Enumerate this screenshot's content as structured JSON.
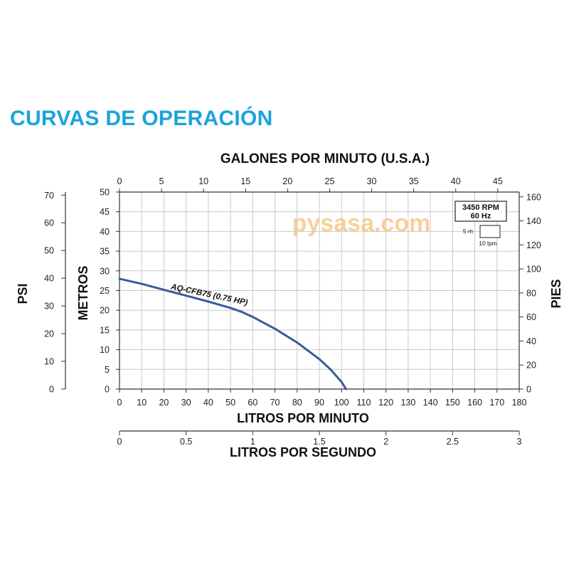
{
  "title": "CURVAS DE OPERACIÓN",
  "colors": {
    "title": "#1aa3dc",
    "curve": "#3a5a9a",
    "grid": "#c8c8c8",
    "watermark": "#f5c07a"
  },
  "watermark": "pysasa.com",
  "legend": {
    "rpm": "3450 RPM",
    "hz": "60 Hz",
    "scale_v": "5 m",
    "scale_h": "10 lpm"
  },
  "chart_data": {
    "type": "line",
    "title": "CURVAS DE OPERACIÓN",
    "xlabel": "LITROS POR MINUTO",
    "ylabel": "METROS",
    "xlim": [
      0,
      180
    ],
    "ylim": [
      0,
      50
    ],
    "grid": true,
    "x_ticks": [
      "0",
      "10",
      "20",
      "30",
      "40",
      "50",
      "60",
      "70",
      "80",
      "90",
      "100",
      "110",
      "120",
      "130",
      "140",
      "150",
      "160",
      "170",
      "180"
    ],
    "y_ticks": [
      "0",
      "5",
      "10",
      "15",
      "20",
      "25",
      "30",
      "35",
      "40",
      "45",
      "50"
    ],
    "top_axis": {
      "label": "GALONES POR MINUTO (U.S.A.)",
      "ticks": [
        "0",
        "5",
        "10",
        "15",
        "20",
        "25",
        "30",
        "35",
        "40",
        "45"
      ],
      "max": 47.55
    },
    "bottom_axis2": {
      "label": "LITROS POR SEGUNDO",
      "ticks": [
        "0",
        "0.5",
        "1",
        "1.5",
        "2",
        "2.5",
        "3"
      ],
      "max": 3
    },
    "left_axis2": {
      "label": "PSI",
      "ticks": [
        "0",
        "10",
        "20",
        "30",
        "40",
        "50",
        "60",
        "70"
      ],
      "max": 71.1
    },
    "right_axis": {
      "label": "PIES",
      "ticks": [
        "0",
        "20",
        "40",
        "60",
        "80",
        "100",
        "120",
        "140",
        "160"
      ],
      "max": 164
    },
    "series": [
      {
        "name": "AQ-CFB75 (0.75 HP)",
        "x": [
          0,
          10,
          20,
          30,
          40,
          50,
          55,
          60,
          70,
          80,
          90,
          95,
          100,
          102
        ],
        "y": [
          28,
          26.7,
          25.2,
          23.7,
          22.2,
          20.6,
          19.6,
          18.3,
          15.3,
          11.8,
          7.6,
          5.0,
          1.8,
          0
        ]
      }
    ]
  }
}
